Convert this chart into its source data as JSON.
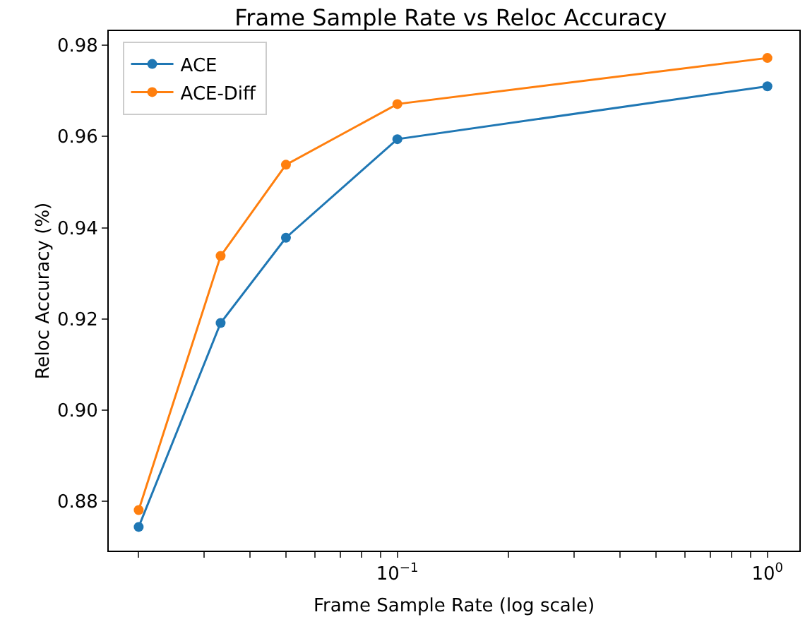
{
  "chart_data": {
    "type": "line",
    "title": "Frame Sample Rate vs Reloc Accuracy",
    "xlabel": "Frame Sample Rate (log scale)",
    "ylabel": "Reloc Accuracy (%)",
    "x": [
      0.02,
      0.0333,
      0.05,
      0.1,
      1
    ],
    "series": [
      {
        "name": "ACE",
        "color": "#1f77b4",
        "values": [
          0.8744,
          0.9191,
          0.9378,
          0.9594,
          0.971
        ]
      },
      {
        "name": "ACE-Diff",
        "color": "#ff7f0e",
        "values": [
          0.8781,
          0.9338,
          0.9538,
          0.9671,
          0.9772
        ]
      }
    ],
    "log": "x",
    "xlim": [
      0.0166,
      1.22
    ],
    "ylim": [
      0.8692,
      0.9831
    ],
    "xticks": [
      {
        "value": 0.02,
        "label": null
      },
      {
        "value": 0.03,
        "label": null
      },
      {
        "value": 0.04,
        "label": null
      },
      {
        "value": 0.05,
        "label": null
      },
      {
        "value": 0.06,
        "label": null
      },
      {
        "value": 0.07,
        "label": null
      },
      {
        "value": 0.08,
        "label": null
      },
      {
        "value": 0.09,
        "label": null
      },
      {
        "value": 0.1,
        "label": "10$^{−1}$"
      },
      {
        "value": 0.2,
        "label": null
      },
      {
        "value": 0.3,
        "label": null
      },
      {
        "value": 0.4,
        "label": null
      },
      {
        "value": 0.5,
        "label": null
      },
      {
        "value": 0.6,
        "label": null
      },
      {
        "value": 0.7,
        "label": null
      },
      {
        "value": 0.8,
        "label": null
      },
      {
        "value": 0.9,
        "label": null
      },
      {
        "value": 1,
        "label": "10$^{0}$"
      }
    ],
    "yticks": [
      {
        "value": 0.88,
        "label": "0.88"
      },
      {
        "value": 0.9,
        "label": "0.90"
      },
      {
        "value": 0.92,
        "label": "0.92"
      },
      {
        "value": 0.94,
        "label": "0.94"
      },
      {
        "value": 0.96,
        "label": "0.96"
      },
      {
        "value": 0.98,
        "label": "0.98"
      }
    ],
    "grid": false,
    "legend": "top left",
    "marker": "circle",
    "line_style": "solid"
  }
}
